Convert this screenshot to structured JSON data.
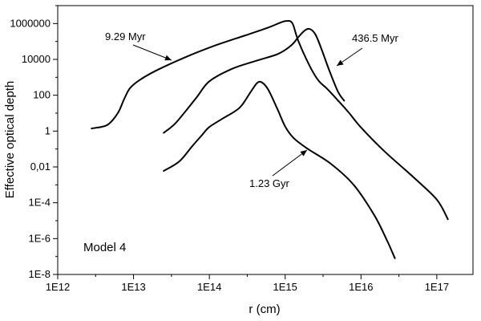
{
  "chart_data": {
    "type": "line",
    "title": "",
    "xlabel": "r (cm)",
    "ylabel": "Effective optical depth",
    "x_scale": "log",
    "y_scale": "log",
    "xlim": [
      1000000000000.0,
      3e+17
    ],
    "ylim": [
      1e-08,
      10000000.0
    ],
    "grid": false,
    "legend": "none",
    "x_ticks": [
      {
        "value": 1000000000000.0,
        "label": "1E12"
      },
      {
        "value": 10000000000000.0,
        "label": "1E13"
      },
      {
        "value": 100000000000000.0,
        "label": "1E14"
      },
      {
        "value": 1000000000000000.0,
        "label": "1E15"
      },
      {
        "value": 1e+16,
        "label": "1E16"
      },
      {
        "value": 1e+17,
        "label": "1E17"
      }
    ],
    "y_ticks": [
      {
        "value": 1e-08,
        "label": "1E-8"
      },
      {
        "value": 1e-06,
        "label": "1E-6"
      },
      {
        "value": 0.0001,
        "label": "1E-4"
      },
      {
        "value": 0.01,
        "label": "0,01"
      },
      {
        "value": 1,
        "label": "1"
      },
      {
        "value": 100,
        "label": "100"
      },
      {
        "value": 10000,
        "label": "10000"
      },
      {
        "value": 1000000,
        "label": "1000000"
      }
    ],
    "series": [
      {
        "name": "9.29 Myr",
        "x": [
          2800000000000.0,
          4500000000000.0,
          6200000000000.0,
          7500000000000.0,
          9000000000000.0,
          12000000000000.0,
          20000000000000.0,
          50000000000000.0,
          120000000000000.0,
          300000000000000.0,
          600000000000000.0,
          850000000000000.0,
          1050000000000000.0,
          1250000000000000.0,
          1500000000000000.0,
          2200000000000000.0,
          2800000000000000.0,
          3500000000000000.0,
          5000000000000000.0,
          7000000000000000.0,
          1e+16,
          2e+16,
          5e+16,
          1e+17,
          1.4e+17
        ],
        "y": [
          1.4,
          2.2,
          10,
          60,
          250,
          700,
          2400,
          14000,
          60000,
          220000,
          600000,
          1100000,
          1400000,
          1000000,
          100000,
          3000,
          600,
          250,
          50,
          10,
          1.6,
          0.08,
          0.0025,
          0.00015,
          1.2e-05
        ]
      },
      {
        "name": "436.5 Myr",
        "x": [
          25000000000000.0,
          35000000000000.0,
          50000000000000.0,
          70000000000000.0,
          100000000000000.0,
          200000000000000.0,
          400000000000000.0,
          800000000000000.0,
          1200000000000000.0,
          1500000000000000.0,
          1800000000000000.0,
          2100000000000000.0,
          2500000000000000.0,
          3000000000000000.0,
          3800000000000000.0,
          5000000000000000.0,
          6000000000000000.0
        ],
        "y": [
          0.8,
          2.5,
          15,
          90,
          600,
          3000,
          8000,
          20000,
          60000,
          180000,
          400000,
          500000,
          250000,
          40000,
          2500,
          150,
          50
        ]
      },
      {
        "name": "1.23 Gyr",
        "x": [
          25000000000000.0,
          40000000000000.0,
          60000000000000.0,
          80000000000000.0,
          100000000000000.0,
          150000000000000.0,
          250000000000000.0,
          350000000000000.0,
          430000000000000.0,
          500000000000000.0,
          600000000000000.0,
          800000000000000.0,
          1000000000000000.0,
          1300000000000000.0,
          2000000000000000.0,
          4000000000000000.0,
          8000000000000000.0,
          1.5e+16,
          2.2e+16,
          2.8e+16
        ],
        "y": [
          0.006,
          0.02,
          0.15,
          0.6,
          1.7,
          5,
          20,
          150,
          500,
          500,
          200,
          15,
          1.8,
          0.4,
          0.1,
          0.015,
          0.001,
          2e-05,
          8e-07,
          8e-08
        ]
      }
    ],
    "annotations": [
      {
        "text": "9.29 Myr",
        "series": "9.29 Myr"
      },
      {
        "text": "436.5 Myr",
        "series": "436.5 Myr"
      },
      {
        "text": "1.23 Gyr",
        "series": "1.23 Gyr"
      },
      {
        "text": "Model 4"
      }
    ]
  }
}
